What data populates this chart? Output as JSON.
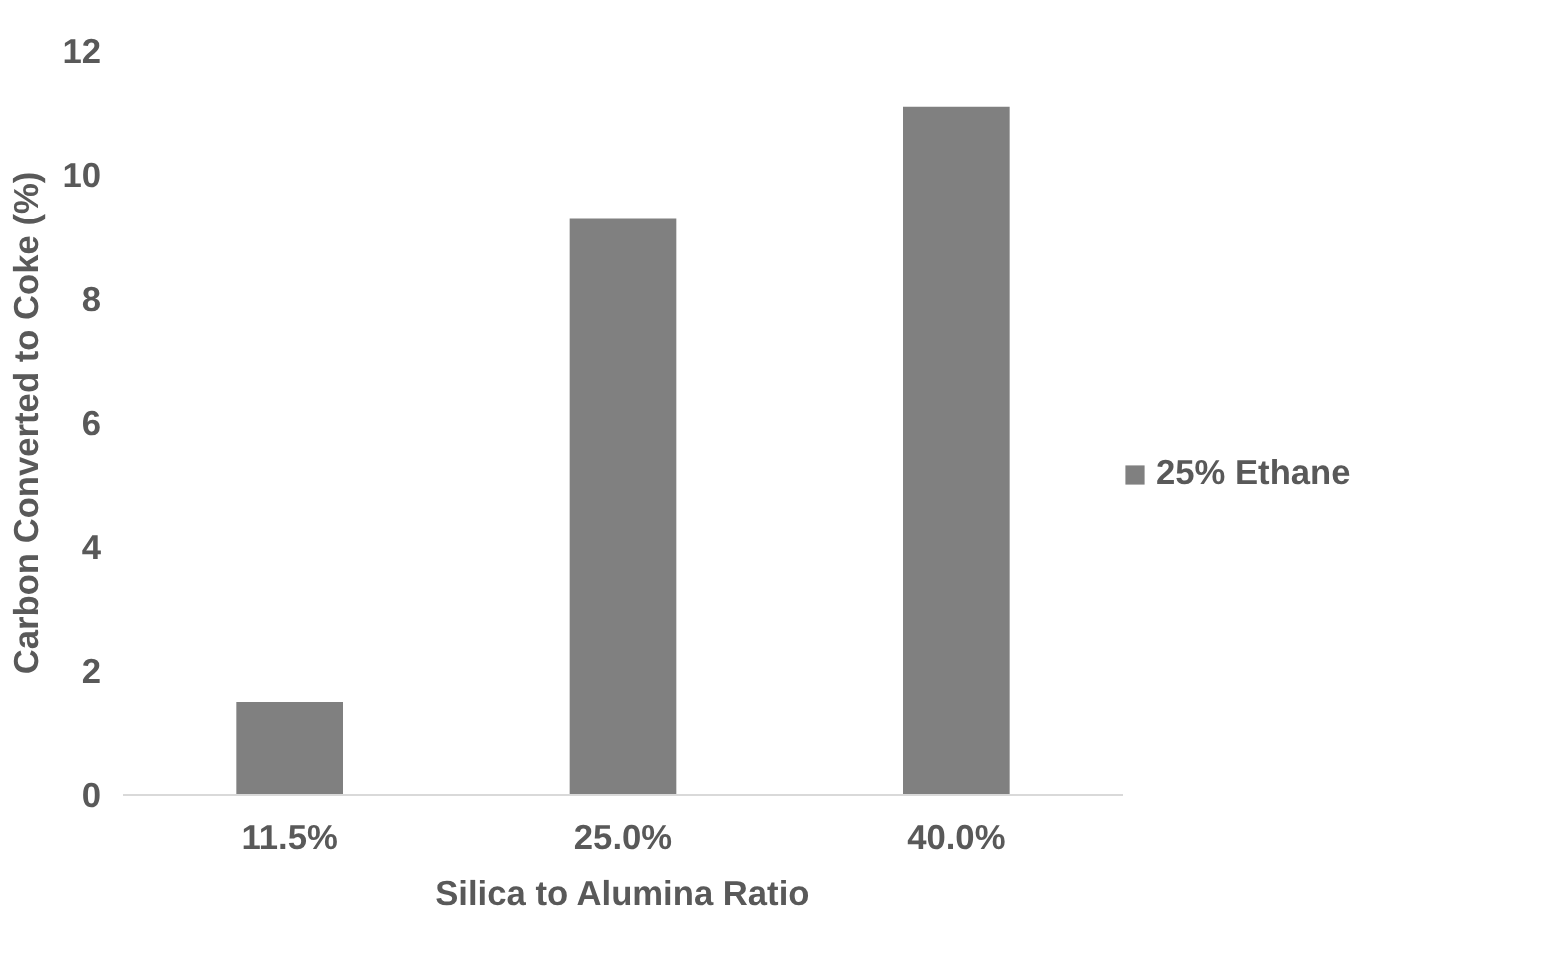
{
  "chart_data": {
    "type": "bar",
    "xlabel": "Silica to Alumina Ratio",
    "ylabel": "Carbon Converted to Coke (%)",
    "categories": [
      "11.5%",
      "25.0%",
      "40.0%"
    ],
    "series": [
      {
        "name": "25% Ethane",
        "color": "#808080",
        "values": [
          1.5,
          9.3,
          11.1
        ]
      }
    ],
    "ylim": [
      0,
      12
    ],
    "yticks": [
      0,
      2,
      4,
      6,
      8,
      10,
      12
    ],
    "grid": false,
    "legend": "right"
  }
}
